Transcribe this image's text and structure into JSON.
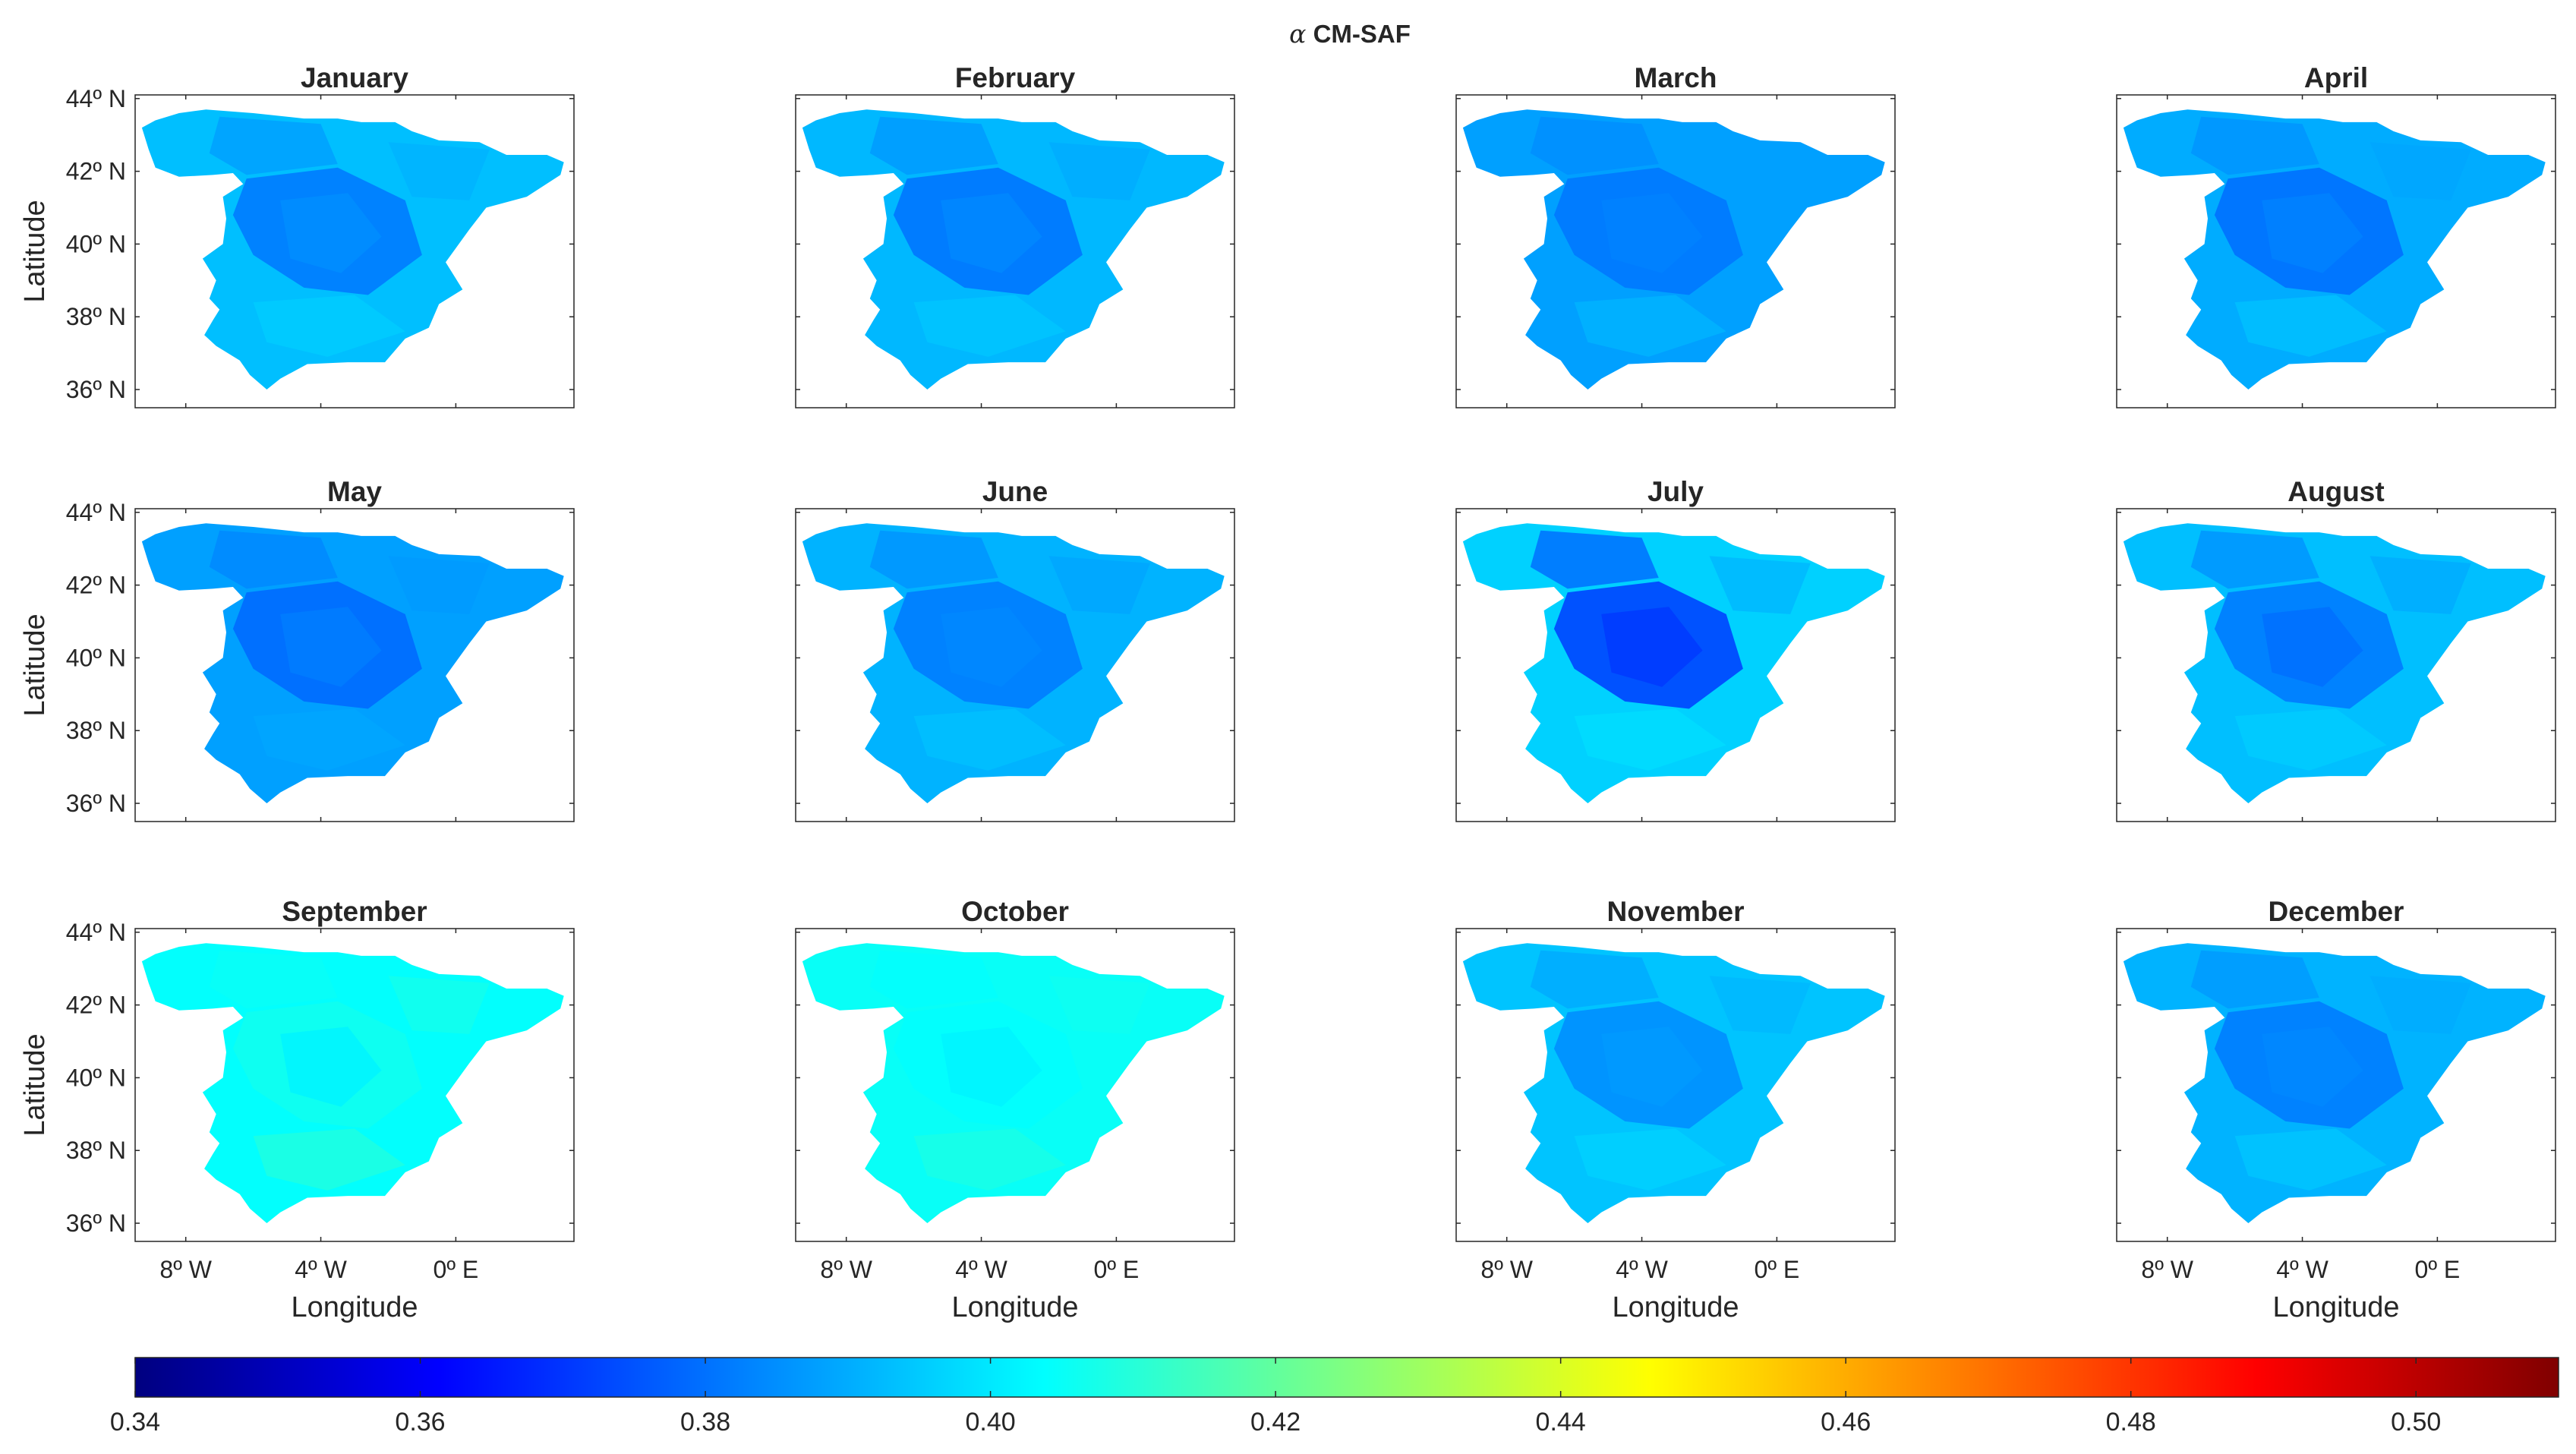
{
  "chart_data": {
    "type": "heatmap",
    "title": "α CM-SAF",
    "title_symbol": "α",
    "title_text": "CM-SAF",
    "colormap": "jet",
    "clim": [
      0.34,
      0.51
    ],
    "colorbar": {
      "orientation": "horizontal",
      "ticks": [
        0.34,
        0.36,
        0.38,
        0.4,
        0.42,
        0.44,
        0.46,
        0.48,
        0.5
      ],
      "tick_labels": [
        "0.34",
        "0.36",
        "0.38",
        "0.40",
        "0.42",
        "0.44",
        "0.46",
        "0.48",
        "0.50"
      ]
    },
    "xlabel": "Longitude",
    "ylabel": "Latitude",
    "xlim": [
      -9.5,
      3.5
    ],
    "ylim": [
      35.5,
      44.1
    ],
    "xticks": [
      -8,
      -4,
      0
    ],
    "xtick_labels": [
      "8º W",
      "4º W",
      "0º E"
    ],
    "yticks": [
      36,
      38,
      40,
      42,
      44
    ],
    "ytick_labels": [
      "36º N",
      "38º N",
      "40º N",
      "42º N",
      "44º N"
    ],
    "panels": [
      {
        "month": "January",
        "base": 0.393,
        "interior": 0.383,
        "zones": [
          0.385,
          0.388,
          0.391,
          0.395
        ]
      },
      {
        "month": "February",
        "base": 0.392,
        "interior": 0.382,
        "zones": [
          0.384,
          0.387,
          0.39,
          0.394
        ]
      },
      {
        "month": "March",
        "base": 0.388,
        "interior": 0.382,
        "zones": [
          0.383,
          0.385,
          0.388,
          0.391
        ]
      },
      {
        "month": "April",
        "base": 0.39,
        "interior": 0.381,
        "zones": [
          0.383,
          0.386,
          0.389,
          0.393
        ]
      },
      {
        "month": "May",
        "base": 0.388,
        "interior": 0.38,
        "zones": [
          0.382,
          0.384,
          0.387,
          0.389
        ]
      },
      {
        "month": "June",
        "base": 0.391,
        "interior": 0.383,
        "zones": [
          0.384,
          0.386,
          0.389,
          0.393
        ]
      },
      {
        "month": "July",
        "base": 0.396,
        "interior": 0.375,
        "zones": [
          0.371,
          0.38,
          0.392,
          0.398
        ]
      },
      {
        "month": "August",
        "base": 0.393,
        "interior": 0.383,
        "zones": [
          0.38,
          0.386,
          0.39,
          0.395
        ]
      },
      {
        "month": "September",
        "base": 0.404,
        "interior": 0.406,
        "zones": [
          0.402,
          0.405,
          0.407,
          0.409
        ]
      },
      {
        "month": "October",
        "base": 0.405,
        "interior": 0.404,
        "zones": [
          0.402,
          0.404,
          0.406,
          0.408
        ]
      },
      {
        "month": "November",
        "base": 0.394,
        "interior": 0.386,
        "zones": [
          0.387,
          0.39,
          0.392,
          0.396
        ]
      },
      {
        "month": "December",
        "base": 0.391,
        "interior": 0.383,
        "zones": [
          0.384,
          0.387,
          0.39,
          0.394
        ]
      }
    ]
  }
}
